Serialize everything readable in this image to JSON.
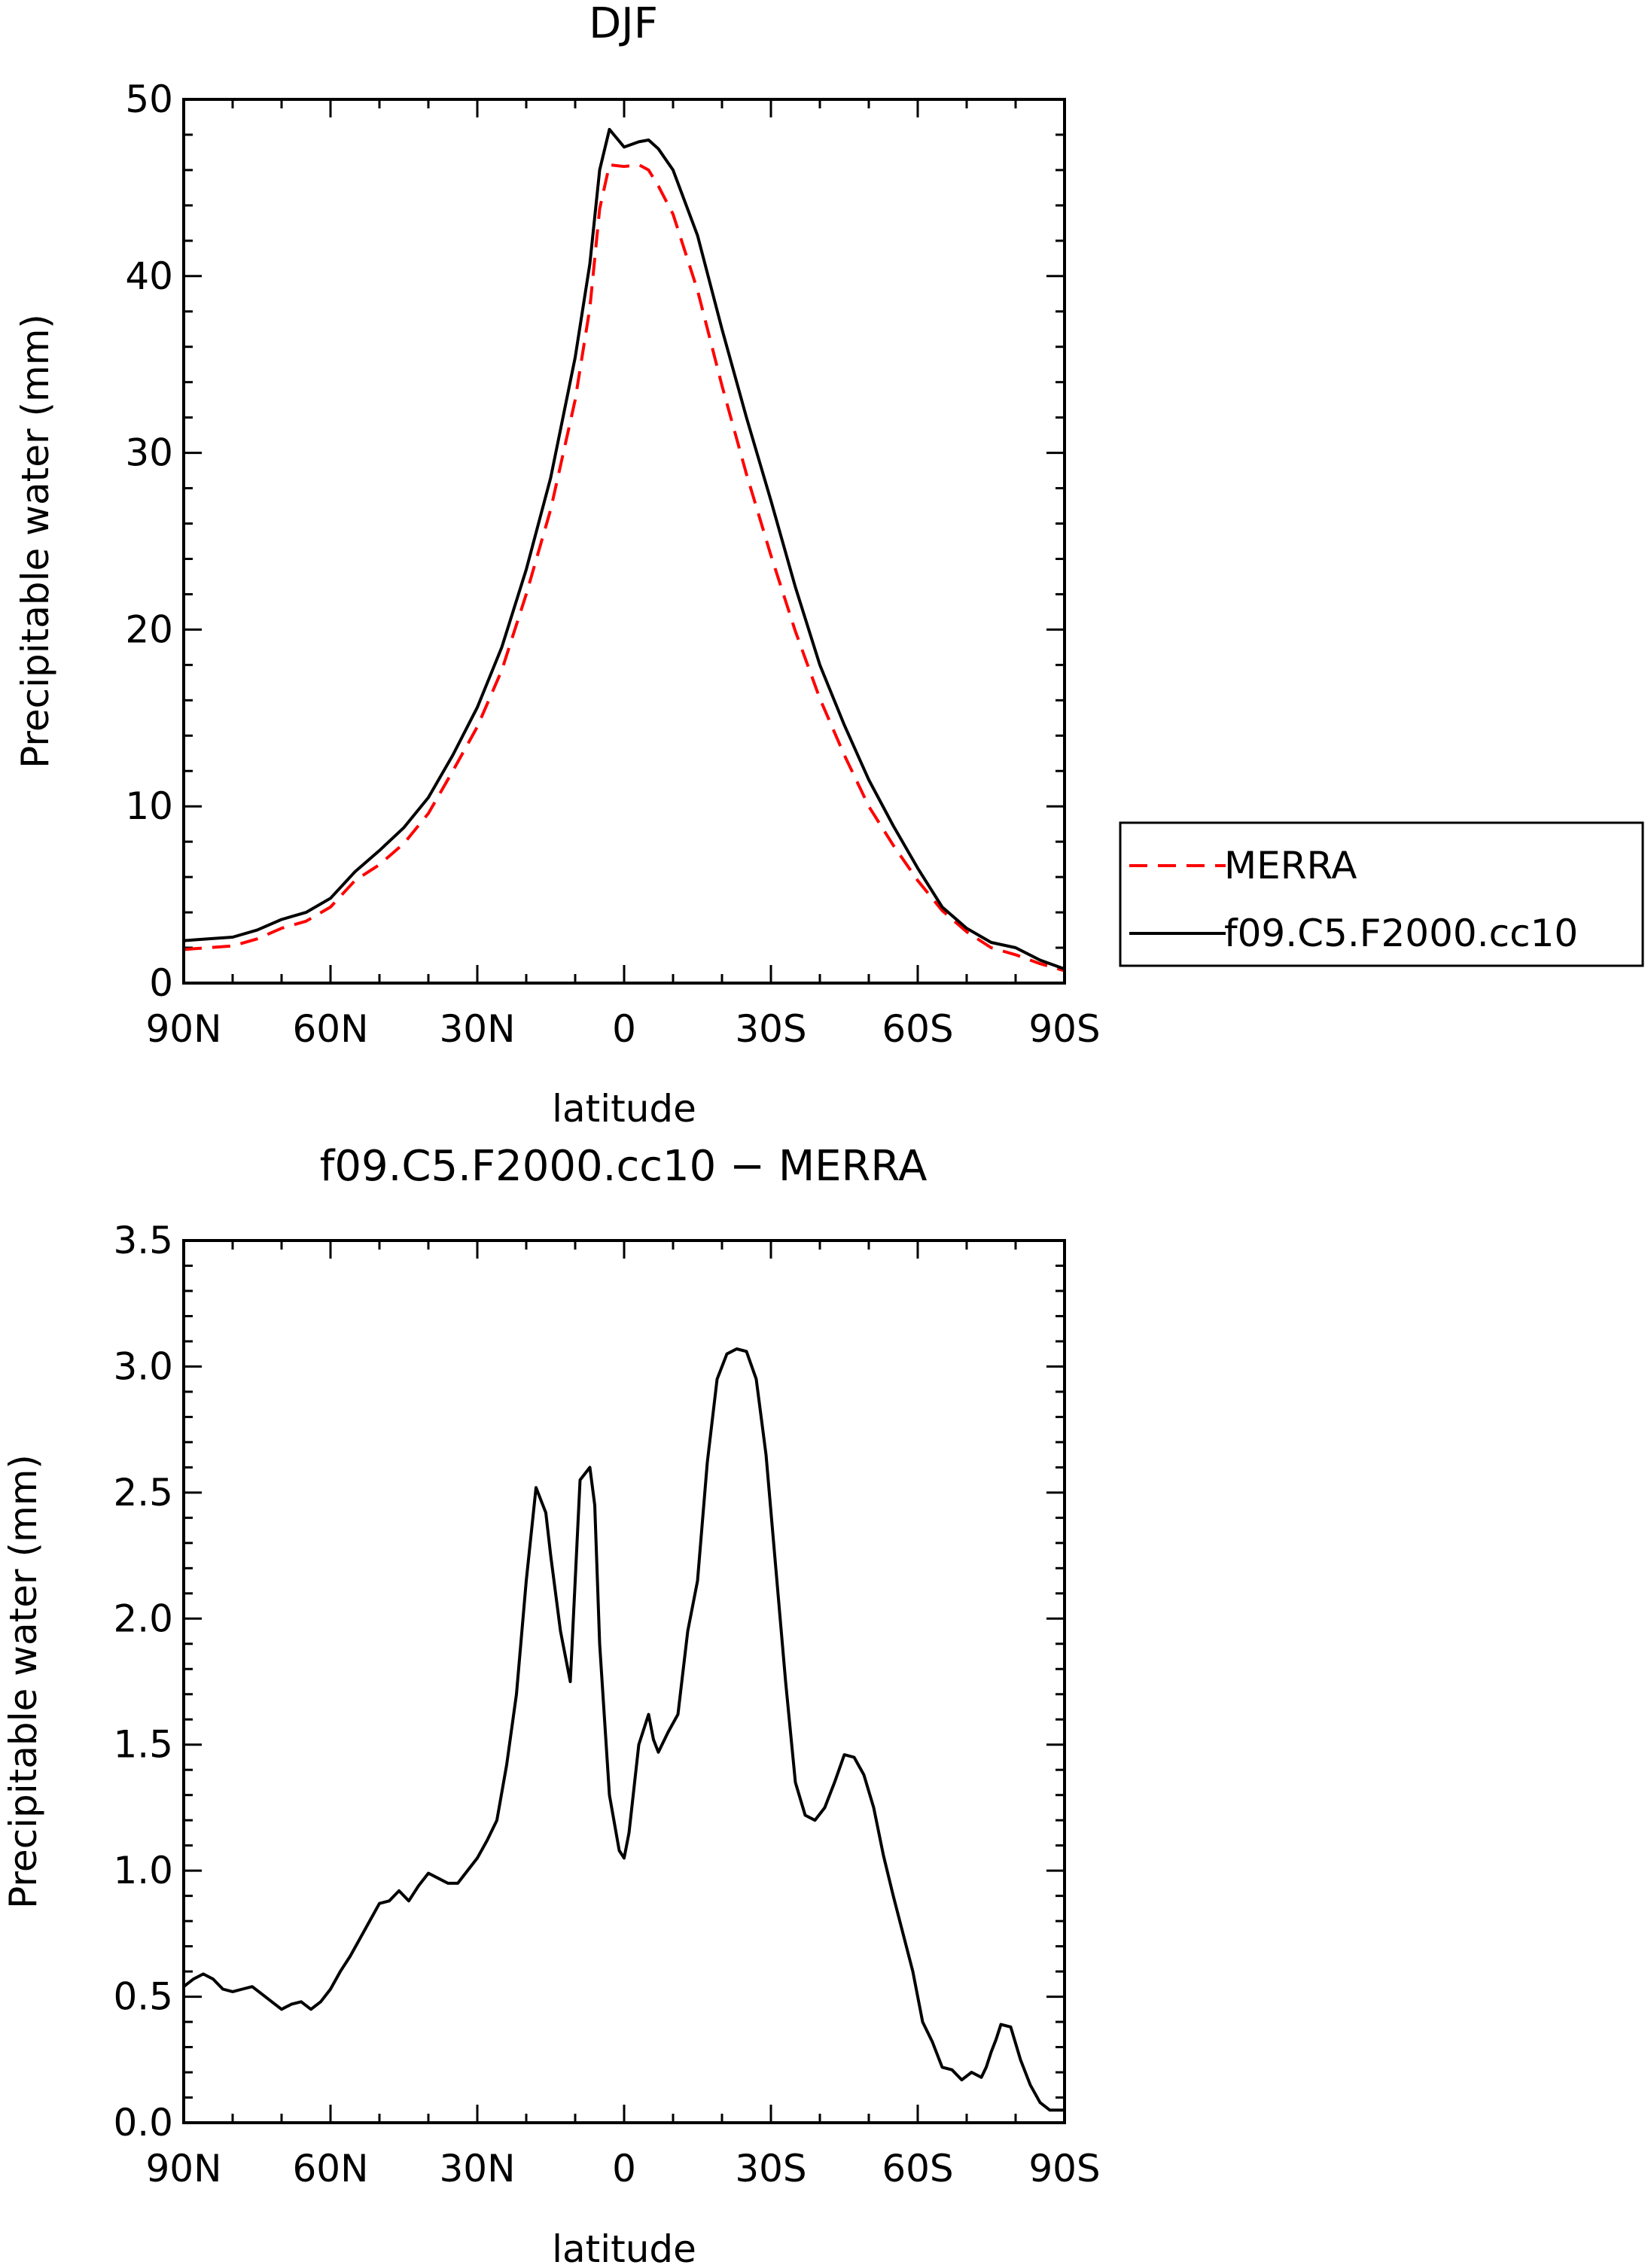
{
  "chart_data": [
    {
      "type": "line",
      "title": "DJF",
      "xlabel": "latitude",
      "ylabel": "Precipitable water (mm)",
      "xlim": [
        -90,
        90
      ],
      "ylim": [
        0,
        50
      ],
      "x_direction": "90N on the left to 90S on the right",
      "xticks": [
        -90,
        -60,
        -30,
        0,
        30,
        60,
        90
      ],
      "xtick_labels": [
        "90N",
        "60N",
        "30N",
        "0",
        "30S",
        "60S",
        "90S"
      ],
      "yticks": [
        0,
        10,
        20,
        30,
        40,
        50
      ],
      "ytick_labels": [
        "0",
        "10",
        "20",
        "30",
        "40",
        "50"
      ],
      "x": [
        -90,
        -85,
        -80,
        -75,
        -70,
        -65,
        -60,
        -55,
        -50,
        -45,
        -40,
        -35,
        -30,
        -25,
        -20,
        -15,
        -10,
        -7,
        -5,
        -3,
        0,
        3,
        5,
        7,
        10,
        15,
        20,
        25,
        30,
        35,
        40,
        45,
        50,
        55,
        60,
        65,
        70,
        75,
        80,
        85,
        90
      ],
      "series": [
        {
          "name": "MERRA",
          "color": "#ff0000",
          "dash": "dashed",
          "values": [
            1.9,
            2.0,
            2.1,
            2.5,
            3.1,
            3.5,
            4.3,
            5.8,
            6.7,
            7.9,
            9.6,
            12.0,
            14.5,
            17.7,
            22.0,
            26.8,
            33.0,
            38.2,
            43.8,
            46.3,
            46.2,
            46.3,
            46.0,
            45.1,
            43.5,
            39.2,
            33.8,
            28.8,
            24.2,
            19.9,
            16.1,
            12.9,
            10.0,
            7.8,
            5.8,
            4.1,
            2.9,
            2.0,
            1.6,
            1.1,
            0.7
          ]
        },
        {
          "name": "f09.C5.F2000.cc10",
          "color": "#000000",
          "dash": "solid",
          "values": [
            2.4,
            2.5,
            2.6,
            3.0,
            3.6,
            4.0,
            4.8,
            6.3,
            7.5,
            8.8,
            10.5,
            12.9,
            15.6,
            19.0,
            23.4,
            28.6,
            35.4,
            40.7,
            46.0,
            48.3,
            47.3,
            47.6,
            47.7,
            47.2,
            46.0,
            42.3,
            37.0,
            32.0,
            27.3,
            22.4,
            18.0,
            14.6,
            11.5,
            8.9,
            6.5,
            4.3,
            3.1,
            2.3,
            2.0,
            1.3,
            0.8
          ]
        }
      ],
      "legend": {
        "position": "right",
        "entries": [
          "MERRA",
          "f09.C5.F2000.cc10"
        ]
      }
    },
    {
      "type": "line",
      "title": "f09.C5.F2000.cc10 − MERRA",
      "xlabel": "latitude",
      "ylabel": "Precipitable water (mm)",
      "xlim": [
        -90,
        90
      ],
      "ylim": [
        0,
        3.5
      ],
      "x_direction": "90N on the left to 90S on the right",
      "xticks": [
        -90,
        -60,
        -30,
        0,
        30,
        60,
        90
      ],
      "xtick_labels": [
        "90N",
        "60N",
        "30N",
        "0",
        "30S",
        "60S",
        "90S"
      ],
      "yticks": [
        0,
        0.5,
        1,
        1.5,
        2,
        2.5,
        3,
        3.5
      ],
      "ytick_labels": [
        "0.0",
        "0.5",
        "1.0",
        "1.5",
        "2.0",
        "2.5",
        "3.0",
        "3.5"
      ],
      "series": [
        {
          "name": "f09.C5.F2000.cc10 − MERRA",
          "color": "#000000",
          "dash": "solid",
          "x": [
            -90,
            -88,
            -86,
            -84,
            -82,
            -80,
            -78,
            -76,
            -74,
            -72,
            -70,
            -68,
            -66,
            -64,
            -62,
            -60,
            -58,
            -56,
            -54,
            -52,
            -50,
            -48,
            -46,
            -44,
            -42,
            -40,
            -38,
            -36,
            -34,
            -32,
            -30,
            -28,
            -26,
            -24,
            -22,
            -20,
            -18,
            -16,
            -15,
            -13,
            -11,
            -9,
            -7,
            -6,
            -5,
            -3,
            -1,
            0,
            1,
            3,
            5,
            6,
            7,
            9,
            11,
            13,
            15,
            17,
            19,
            21,
            23,
            25,
            27,
            29,
            31,
            33,
            35,
            37,
            39,
            41,
            43,
            45,
            47,
            49,
            51,
            53,
            55,
            57,
            59,
            61,
            63,
            65,
            67,
            69,
            71,
            73,
            74,
            75,
            76,
            77,
            79,
            81,
            83,
            85,
            87,
            89,
            90
          ],
          "values": [
            0.54,
            0.57,
            0.59,
            0.57,
            0.53,
            0.52,
            0.53,
            0.54,
            0.51,
            0.48,
            0.45,
            0.47,
            0.48,
            0.45,
            0.48,
            0.53,
            0.6,
            0.66,
            0.73,
            0.8,
            0.87,
            0.88,
            0.92,
            0.88,
            0.94,
            0.99,
            0.97,
            0.95,
            0.95,
            1.0,
            1.05,
            1.12,
            1.2,
            1.42,
            1.7,
            2.15,
            2.52,
            2.42,
            2.25,
            1.95,
            1.75,
            2.55,
            2.6,
            2.45,
            1.9,
            1.3,
            1.08,
            1.05,
            1.15,
            1.5,
            1.62,
            1.52,
            1.47,
            1.55,
            1.62,
            1.95,
            2.15,
            2.62,
            2.95,
            3.05,
            3.07,
            3.06,
            2.95,
            2.65,
            2.2,
            1.75,
            1.35,
            1.22,
            1.2,
            1.25,
            1.35,
            1.46,
            1.45,
            1.38,
            1.25,
            1.06,
            0.9,
            0.75,
            0.6,
            0.4,
            0.32,
            0.22,
            0.21,
            0.17,
            0.2,
            0.18,
            0.22,
            0.28,
            0.33,
            0.39,
            0.38,
            0.25,
            0.15,
            0.08,
            0.05,
            0.05,
            0.05
          ]
        }
      ]
    }
  ]
}
